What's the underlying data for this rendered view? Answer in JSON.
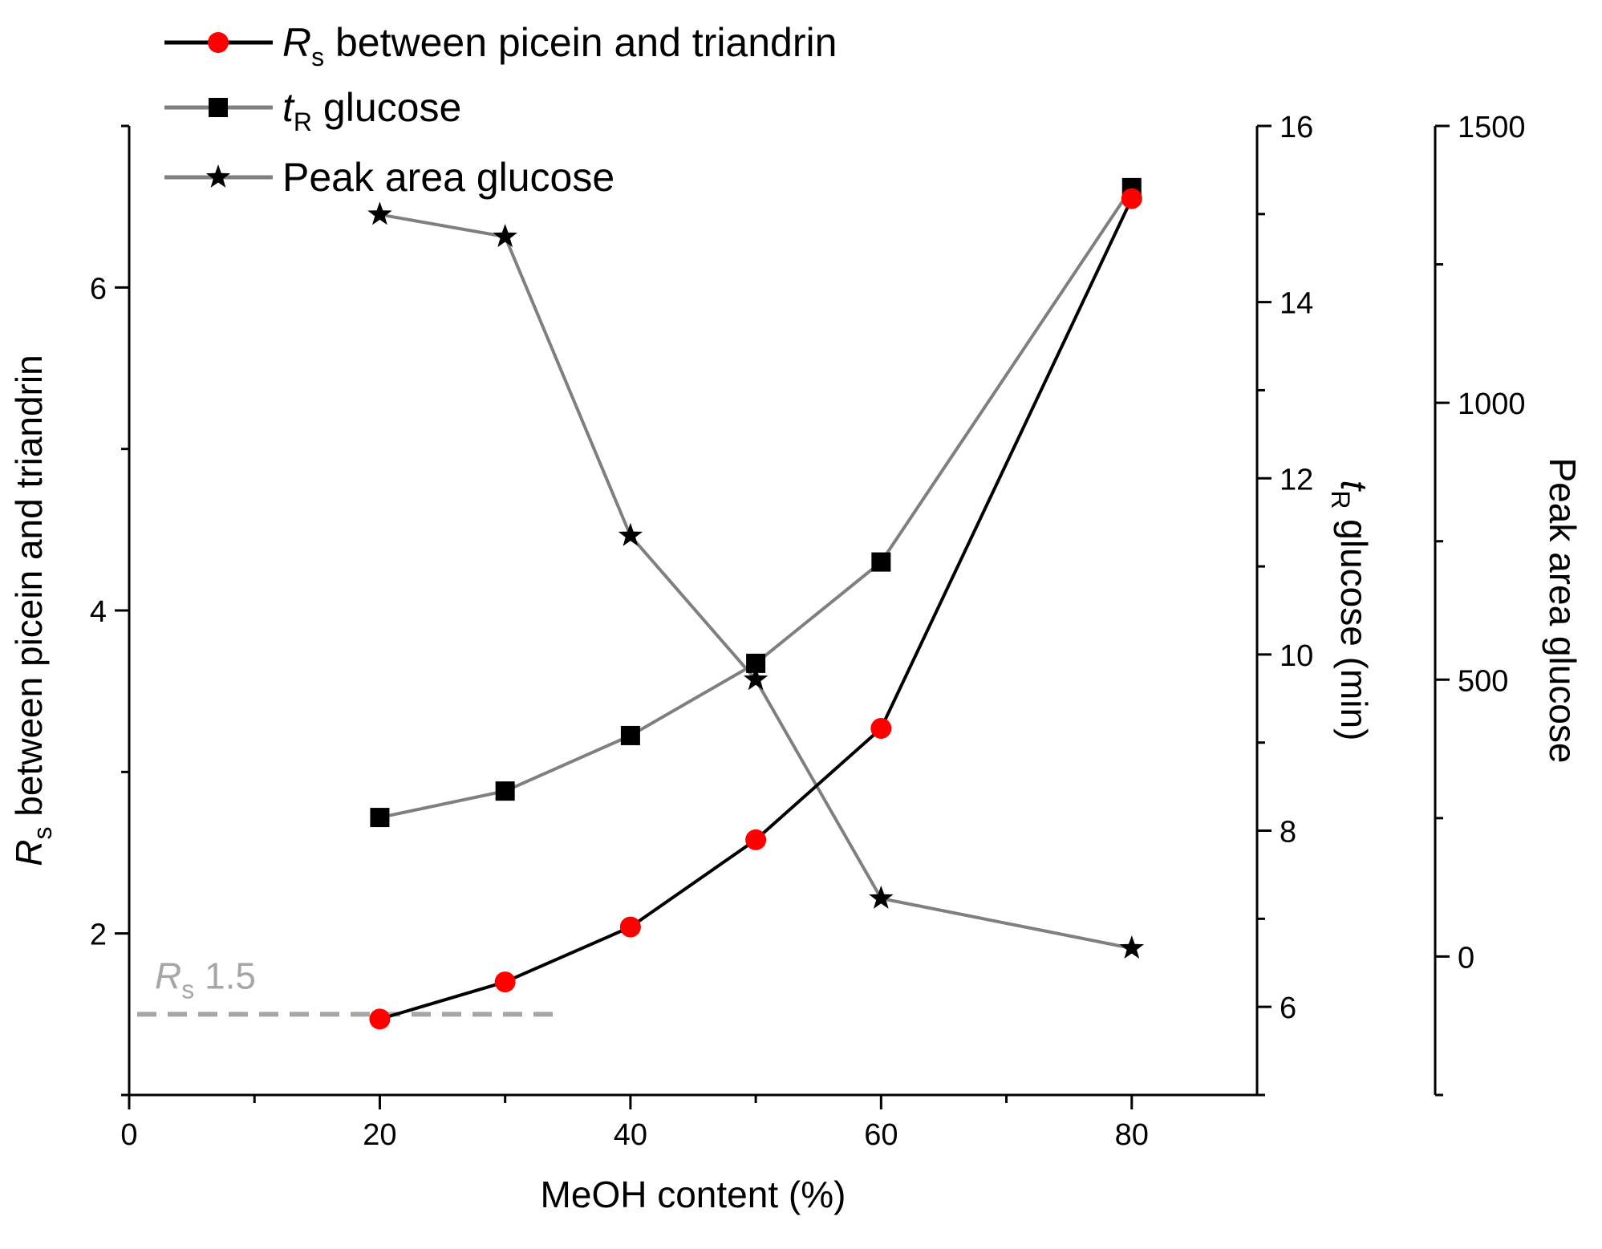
{
  "chart_data": {
    "type": "line",
    "xlabel": "MeOH content (%)",
    "xlim": [
      0,
      90
    ],
    "xticks": [
      0,
      20,
      40,
      60,
      80
    ],
    "axes": [
      {
        "id": "rs",
        "position": "left",
        "label_symbol": "R",
        "label_sub": "s",
        "label_rest": " between picein and triandrin",
        "ylim": [
          1,
          7
        ],
        "ticks": [
          2,
          4,
          6
        ],
        "minor_ticks": [
          1,
          3,
          5,
          7
        ],
        "tick_labels": [
          "2",
          "4",
          "6"
        ]
      },
      {
        "id": "tr",
        "position": "right",
        "label_symbol": "t",
        "label_sub": "R",
        "label_rest": " glucose (min)",
        "ylim": [
          5,
          16
        ],
        "ticks": [
          6,
          8,
          10,
          12,
          14,
          16
        ],
        "minor_ticks": [
          5,
          7,
          9,
          11,
          13,
          15
        ],
        "tick_labels": [
          "6",
          "8",
          "10",
          "12",
          "14",
          "16"
        ]
      },
      {
        "id": "area",
        "position": "right-offset",
        "label": "Peak area glucose",
        "ylim": [
          -250,
          1500
        ],
        "ticks": [
          0,
          500,
          1000,
          1500
        ],
        "minor_ticks": [
          -250,
          250,
          750,
          1250
        ],
        "tick_labels": [
          "0",
          "500",
          "1000",
          "1500"
        ]
      }
    ],
    "series": [
      {
        "name_symbol": "R",
        "name_sub": "s",
        "name_rest": " between picein and triandrin",
        "axis": "rs",
        "marker": "circle",
        "line_color": "#000000",
        "marker_color": "#ff0000",
        "x": [
          20,
          30,
          40,
          50,
          60,
          80
        ],
        "values": [
          1.47,
          1.7,
          2.04,
          2.58,
          3.27,
          6.55
        ]
      },
      {
        "name_symbol": "t",
        "name_sub": "R",
        "name_rest": " glucose",
        "axis": "tr",
        "marker": "square",
        "line_color": "#7f7f7f",
        "marker_color": "#000000",
        "x": [
          20,
          30,
          40,
          50,
          60,
          80
        ],
        "values": [
          8.15,
          8.45,
          9.08,
          9.9,
          11.05,
          15.3
        ]
      },
      {
        "name": "Peak area glucose",
        "axis": "area",
        "marker": "star",
        "line_color": "#7f7f7f",
        "marker_color": "#000000",
        "x": [
          20,
          30,
          40,
          50,
          60,
          80
        ],
        "values": [
          1340,
          1300,
          760,
          500,
          105,
          15
        ]
      }
    ],
    "reference_line": {
      "axis": "rs",
      "value": 1.5,
      "x_range": [
        0,
        34
      ],
      "label_symbol": "R",
      "label_sub": "s",
      "label_rest": " 1.5",
      "color": "#a6a6a6"
    },
    "legend": "top-left",
    "grid": false
  }
}
